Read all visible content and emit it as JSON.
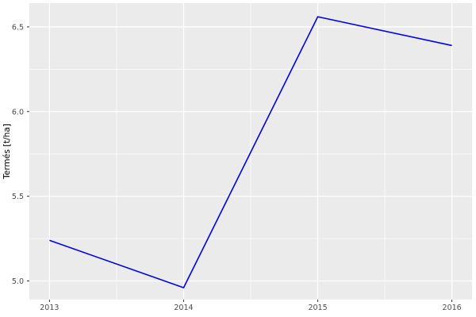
{
  "chart_data": {
    "type": "line",
    "title": "",
    "xlabel": "",
    "ylabel": "Termés [t/ha]",
    "x": [
      2013,
      2014,
      2015,
      2016
    ],
    "series": [
      {
        "name": "Termés",
        "values": [
          5.24,
          4.96,
          6.56,
          6.39
        ]
      }
    ],
    "x_ticks": [
      2013,
      2014,
      2015,
      2016
    ],
    "x_tick_labels": [
      "2013",
      "2014",
      "2015",
      "2016"
    ],
    "y_ticks": [
      5.0,
      5.5,
      6.0,
      6.5
    ],
    "y_tick_labels": [
      "5.0",
      "5.5",
      "6.0",
      "6.5"
    ],
    "xlim": [
      2012.85,
      2016.15
    ],
    "ylim": [
      4.89,
      6.64
    ],
    "grid": "major-and-minor",
    "legend": "none",
    "theme": "ggplot2-grey"
  },
  "colors": {
    "line": "#0000EE",
    "panel_bg": "#EBEBEB",
    "grid": "#FFFFFF",
    "tick_label": "#4D4D4D",
    "axis_title": "#000000",
    "tick_mark": "#333333",
    "figure_bg": "#FFFFFF"
  }
}
